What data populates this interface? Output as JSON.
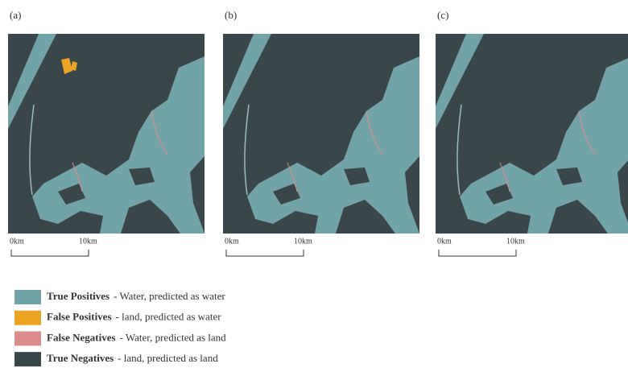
{
  "panels": [
    {
      "label": "(a)",
      "scale_start": "0km",
      "scale_end": "10km"
    },
    {
      "label": "(b)",
      "scale_start": "0km",
      "scale_end": "10km"
    },
    {
      "label": "(c)",
      "scale_start": "0km",
      "scale_end": "10km"
    }
  ],
  "legend": {
    "items": [
      {
        "term": "True Positives",
        "description": "- Water, predicted as water",
        "color": "#72a3a8"
      },
      {
        "term": "False Positives",
        "description": "- land, predicted as water",
        "color": "#eba324"
      },
      {
        "term": "False Negatives",
        "description": "- Water, predicted as land",
        "color": "#dd8b8b"
      },
      {
        "term": "True Negatives",
        "description": "- land, predicted as land",
        "color": "#39474a"
      }
    ]
  }
}
